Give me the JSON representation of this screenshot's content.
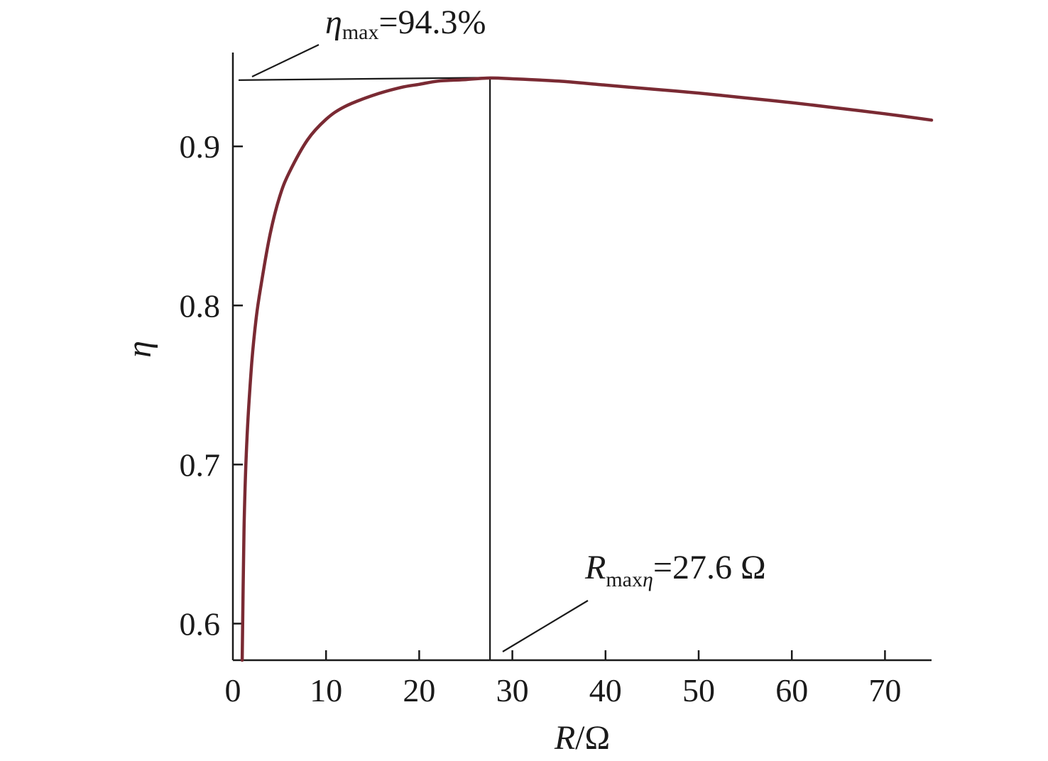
{
  "chart_data": {
    "type": "line",
    "title": "",
    "xlabel": {
      "var": "R",
      "unit": "/Ω"
    },
    "ylabel": "η",
    "xlim": [
      0,
      75
    ],
    "ylim": [
      0.577,
      0.959
    ],
    "x_ticks": [
      0,
      10,
      20,
      30,
      40,
      50,
      60,
      70
    ],
    "x_tick_labels": [
      "0",
      "10",
      "20",
      "30",
      "40",
      "50",
      "60",
      "70"
    ],
    "y_ticks": [
      0.6,
      0.7,
      0.8,
      0.9
    ],
    "y_tick_labels": [
      "0.6",
      "0.7",
      "0.8",
      "0.9"
    ],
    "grid": false,
    "series": [
      {
        "color": "#7a2a33",
        "x": [
          1.0,
          1.2,
          1.5,
          2.0,
          2.5,
          3.0,
          4.0,
          5.0,
          6.0,
          8.0,
          10.0,
          12.0,
          15.0,
          18.0,
          20.0,
          22.0,
          25.0,
          27.6,
          30.0,
          35.0,
          40.0,
          45.0,
          50.0,
          55.0,
          60.0,
          65.0,
          70.0,
          75.0
        ],
        "y": [
          0.577,
          0.66,
          0.715,
          0.762,
          0.792,
          0.812,
          0.845,
          0.868,
          0.883,
          0.904,
          0.917,
          0.925,
          0.932,
          0.937,
          0.939,
          0.941,
          0.942,
          0.943,
          0.9425,
          0.941,
          0.9385,
          0.936,
          0.9335,
          0.9305,
          0.9275,
          0.924,
          0.9205,
          0.9165
        ]
      }
    ],
    "annotations": [
      {
        "var": "η",
        "sub": "max",
        "text": "=94.3%",
        "value": 0.943
      },
      {
        "var": "R",
        "sub": "max",
        "sub_var": "η",
        "text": "=27.6 Ω",
        "value": 27.6
      }
    ]
  }
}
